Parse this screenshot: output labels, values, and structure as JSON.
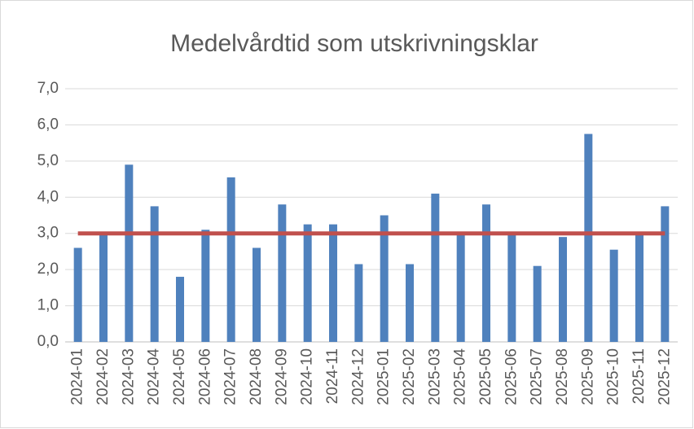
{
  "chart_data": {
    "type": "bar",
    "title": "Medelvårdtid som utskrivningsklar",
    "categories": [
      "2024-01",
      "2024-02",
      "2024-03",
      "2024-04",
      "2024-05",
      "2024-06",
      "2024-07",
      "2024-08",
      "2024-09",
      "2024-10",
      "2024-11",
      "2024-12",
      "2025-01",
      "2025-02",
      "2025-03",
      "2025-04",
      "2025-05",
      "2025-06",
      "2025-07",
      "2025-08",
      "2025-09",
      "2025-10",
      "2025-11",
      "2025-12"
    ],
    "series": [
      {
        "type": "bar",
        "color": "#4f81bd",
        "values": [
          2.6,
          2.95,
          4.9,
          3.75,
          1.8,
          3.1,
          4.55,
          2.6,
          3.8,
          3.25,
          3.25,
          2.15,
          3.5,
          2.15,
          4.1,
          2.95,
          3.8,
          2.95,
          2.1,
          2.9,
          5.75,
          2.55,
          2.95,
          3.75
        ]
      },
      {
        "type": "line",
        "color": "#c0504d",
        "values": [
          3,
          3,
          3,
          3,
          3,
          3,
          3,
          3,
          3,
          3,
          3,
          3,
          3,
          3,
          3,
          3,
          3,
          3,
          3,
          3,
          3,
          3,
          3,
          3
        ]
      }
    ],
    "ylim": [
      0,
      7
    ],
    "yticks": [
      {
        "value": 0,
        "label": "0,0"
      },
      {
        "value": 1,
        "label": "1,0"
      },
      {
        "value": 2,
        "label": "2,0"
      },
      {
        "value": 3,
        "label": "3,0"
      },
      {
        "value": 4,
        "label": "4,0"
      },
      {
        "value": 5,
        "label": "5,0"
      },
      {
        "value": 6,
        "label": "6,0"
      },
      {
        "value": 7,
        "label": "7,0"
      }
    ],
    "grid": true
  }
}
